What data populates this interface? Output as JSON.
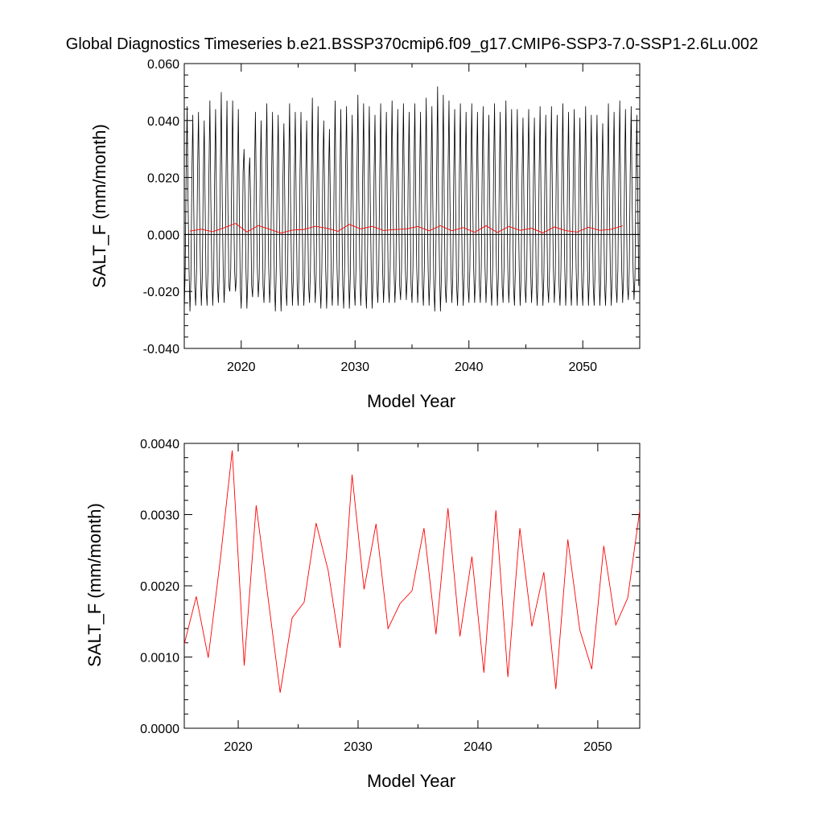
{
  "page_title": "Global Diagnostics Timeseries b.e21.BSSP370cmip6.f09_g17.CMIP6-SSP3-7.0-SSP1-2.6Lu.002",
  "colors": {
    "monthly_line": "#000000",
    "annual_line": "#ff0000",
    "zero_line": "#000000"
  },
  "chart_data": [
    {
      "type": "line",
      "title": "",
      "xlabel": "Model Year",
      "ylabel": "SALT_F (mm/month)",
      "xlim": [
        2015,
        2055
      ],
      "ylim": [
        -0.04,
        0.06
      ],
      "x_ticks": [
        "2020",
        "2030",
        "2040",
        "2050"
      ],
      "x_tick_values": [
        2020,
        2030,
        2040,
        2050
      ],
      "y_ticks": [
        "-0.040",
        "-0.020",
        "0.000",
        "0.020",
        "0.040",
        "0.060"
      ],
      "y_tick_values": [
        -0.04,
        -0.02,
        0.0,
        0.02,
        0.04,
        0.06
      ],
      "reference_line_y": 0.0,
      "series": [
        {
          "key": "monthly",
          "color": "#000000",
          "x_start": 2015.0,
          "x_step": 0.08333,
          "seasonal_cycle": [
            -0.027,
            -0.012,
            0.022,
            0.045,
            0.012,
            -0.012,
            -0.024,
            -0.015,
            0.02,
            0.043,
            0.01,
            -0.018
          ],
          "annual_peaks": [
            0.045,
            0.043,
            0.047,
            0.05,
            0.047,
            0.03,
            0.043,
            0.046,
            0.042,
            0.046,
            0.043,
            0.048,
            0.04,
            0.047,
            0.045,
            0.049,
            0.045,
            0.046,
            0.047,
            0.046,
            0.046,
            0.048,
            0.052,
            0.047,
            0.046,
            0.046,
            0.045,
            0.046,
            0.047,
            0.044,
            0.044,
            0.045,
            0.045,
            0.046,
            0.044,
            0.045,
            0.042,
            0.046,
            0.047,
            0.045
          ],
          "annual_troughs": [
            -0.027,
            -0.025,
            -0.025,
            -0.024,
            -0.02,
            -0.026,
            -0.022,
            -0.024,
            -0.027,
            -0.025,
            -0.025,
            -0.024,
            -0.026,
            -0.025,
            -0.026,
            -0.025,
            -0.026,
            -0.024,
            -0.024,
            -0.023,
            -0.024,
            -0.025,
            -0.027,
            -0.024,
            -0.025,
            -0.024,
            -0.024,
            -0.025,
            -0.024,
            -0.025,
            -0.024,
            -0.025,
            -0.024,
            -0.025,
            -0.025,
            -0.025,
            -0.025,
            -0.025,
            -0.024,
            -0.023
          ]
        },
        {
          "key": "annual",
          "color": "#ff0000",
          "x": [
            2015.5,
            2016.5,
            2017.5,
            2018.5,
            2019.5,
            2020.5,
            2021.5,
            2022.5,
            2023.5,
            2024.5,
            2025.5,
            2026.5,
            2027.5,
            2028.5,
            2029.5,
            2030.5,
            2031.5,
            2032.5,
            2033.5,
            2034.5,
            2035.5,
            2036.5,
            2037.5,
            2038.5,
            2039.5,
            2040.5,
            2041.5,
            2042.5,
            2043.5,
            2044.5,
            2045.5,
            2046.5,
            2047.5,
            2048.5,
            2049.5,
            2050.5,
            2051.5,
            2052.5,
            2053.5
          ],
          "values": [
            0.00118,
            0.00185,
            0.00099,
            0.00236,
            0.0039,
            0.00088,
            0.00313,
            0.00182,
            0.0005,
            0.00155,
            0.00177,
            0.00288,
            0.00222,
            0.00113,
            0.00356,
            0.00195,
            0.00287,
            0.0014,
            0.00175,
            0.00193,
            0.00281,
            0.00132,
            0.00309,
            0.00129,
            0.00241,
            0.00078,
            0.00306,
            0.00072,
            0.00281,
            0.00143,
            0.00219,
            0.00055,
            0.00265,
            0.00138,
            0.00083,
            0.00256,
            0.00145,
            0.00183,
            0.00306
          ]
        }
      ]
    },
    {
      "type": "line",
      "title": "",
      "xlabel": "Model Year",
      "ylabel": "SALT_F (mm/month)",
      "xlim": [
        2015.5,
        2053.5
      ],
      "ylim": [
        0.0,
        0.004
      ],
      "x_ticks": [
        "2020",
        "2030",
        "2040",
        "2050"
      ],
      "x_tick_values": [
        2020,
        2030,
        2040,
        2050
      ],
      "y_ticks": [
        "0.0000",
        "0.0010",
        "0.0020",
        "0.0030",
        "0.0040"
      ],
      "y_tick_values": [
        0.0,
        0.001,
        0.002,
        0.003,
        0.004
      ],
      "series": [
        {
          "key": "annual",
          "color": "#ff0000",
          "x": [
            2015.5,
            2016.5,
            2017.5,
            2018.5,
            2019.5,
            2020.5,
            2021.5,
            2022.5,
            2023.5,
            2024.5,
            2025.5,
            2026.5,
            2027.5,
            2028.5,
            2029.5,
            2030.5,
            2031.5,
            2032.5,
            2033.5,
            2034.5,
            2035.5,
            2036.5,
            2037.5,
            2038.5,
            2039.5,
            2040.5,
            2041.5,
            2042.5,
            2043.5,
            2044.5,
            2045.5,
            2046.5,
            2047.5,
            2048.5,
            2049.5,
            2050.5,
            2051.5,
            2052.5,
            2053.5
          ],
          "values": [
            0.00118,
            0.00185,
            0.00099,
            0.00236,
            0.0039,
            0.00088,
            0.00313,
            0.00182,
            0.0005,
            0.00155,
            0.00177,
            0.00288,
            0.00222,
            0.00113,
            0.00356,
            0.00195,
            0.00287,
            0.0014,
            0.00175,
            0.00193,
            0.00281,
            0.00132,
            0.00309,
            0.00129,
            0.00241,
            0.00078,
            0.00306,
            0.00072,
            0.00281,
            0.00143,
            0.00219,
            0.00055,
            0.00265,
            0.00138,
            0.00083,
            0.00256,
            0.00145,
            0.00183,
            0.00306
          ]
        }
      ]
    }
  ]
}
